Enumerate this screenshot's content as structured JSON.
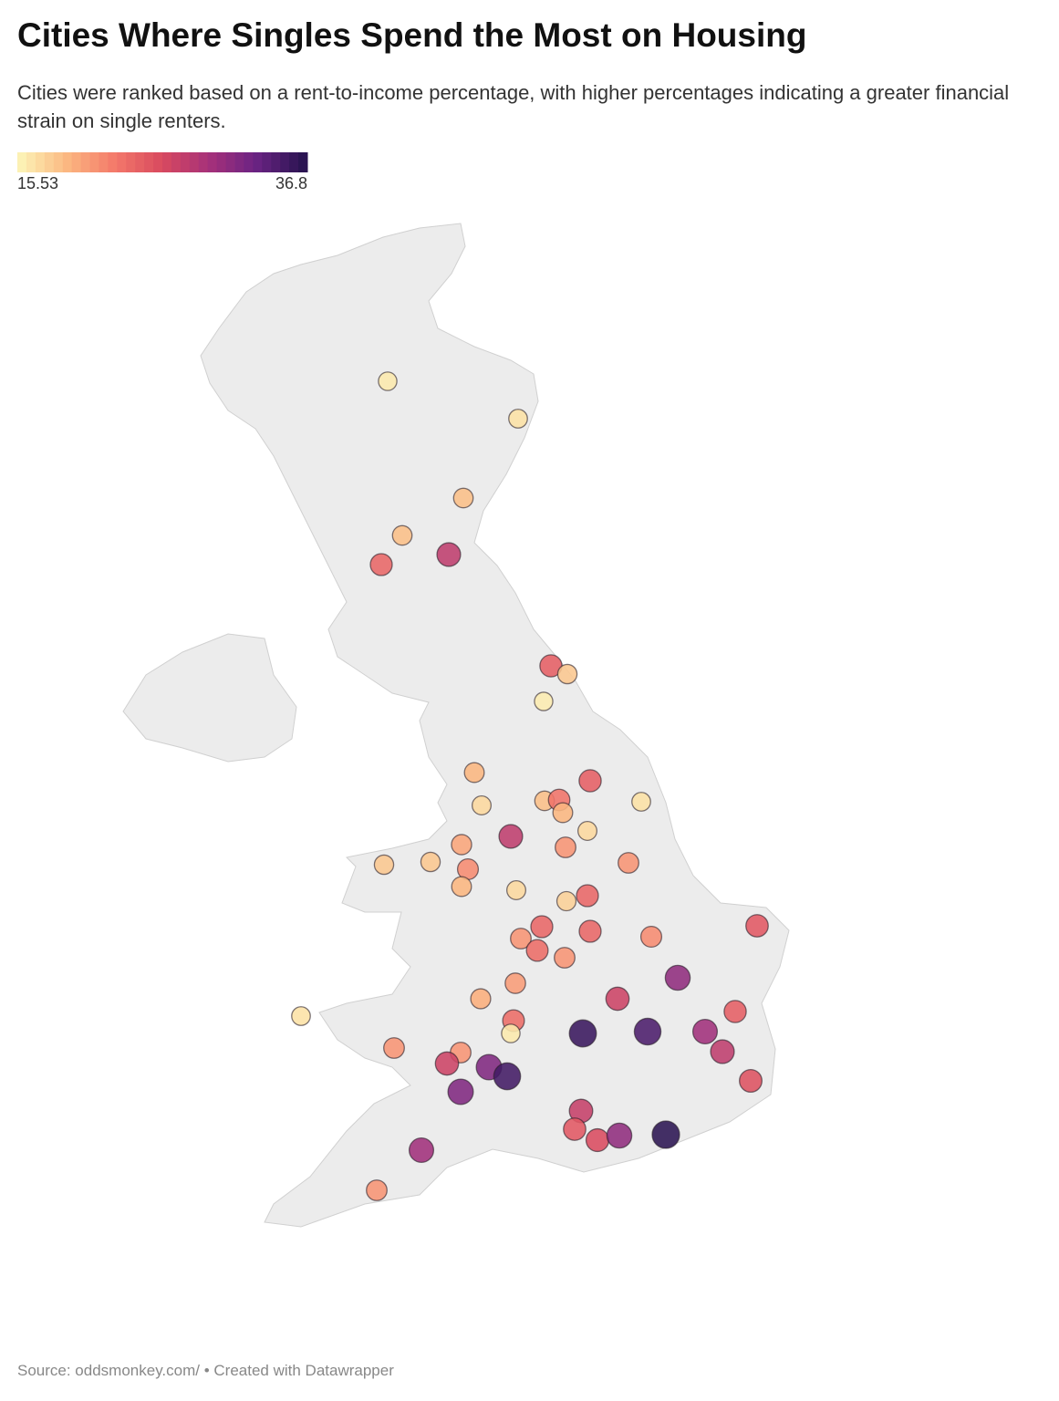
{
  "header": {
    "title": "Cities Where Singles Spend the Most on Housing",
    "subtitle": "Cities were ranked based on a rent-to-income percentage, with higher percentages indicating a greater financial strain on single renters."
  },
  "legend": {
    "min": 15.53,
    "max": 36.8,
    "colors": [
      "#fcf1b4",
      "#fbb57f",
      "#f3786a",
      "#d8495f",
      "#a6317a",
      "#6a2383",
      "#2b1452"
    ]
  },
  "points": {
    "values": [
      16,
      16.5,
      18.5,
      18.5,
      28,
      24,
      24.5,
      18,
      15.8,
      19,
      24.5,
      17,
      18.5,
      23,
      19,
      16.5,
      17,
      28,
      20,
      21,
      18,
      18,
      21.5,
      21,
      19,
      17,
      24,
      17.5,
      24,
      24,
      21,
      21.5,
      25,
      23.5,
      21,
      31,
      20.5,
      19.5,
      27,
      24.5,
      16.5,
      23.5,
      16,
      36,
      35,
      30,
      21,
      21,
      28,
      27,
      32,
      35.5,
      25.5,
      32,
      27.5,
      25,
      26,
      31,
      36.8,
      30,
      21
    ]
  },
  "footer": {
    "source": "Source: oddsmonkey.com/ • Created with Datawrapper"
  }
}
